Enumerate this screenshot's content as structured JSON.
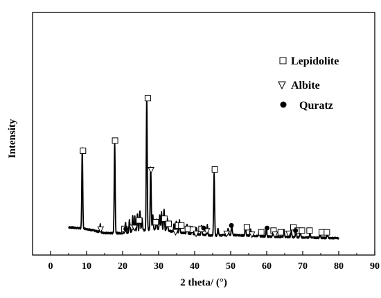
{
  "chart_data": {
    "type": "line",
    "xlabel": "2 theta/ (°)",
    "ylabel": "Intensity",
    "xlim": [
      -5,
      90
    ],
    "ylim": [
      0,
      100
    ],
    "x_ticks": [
      0,
      10,
      20,
      30,
      40,
      50,
      60,
      70,
      80,
      90
    ],
    "grid": false,
    "legend_position": "top-right",
    "legend": [
      {
        "label": "Lepidolite",
        "marker": "open-square"
      },
      {
        "label": "Albite",
        "marker": "open-down-triangle"
      },
      {
        "label": "Quratz",
        "marker": "filled-circle"
      }
    ],
    "series": [
      {
        "x_range": [
          5,
          80
        ],
        "baseline": [
          [
            5,
            7
          ],
          [
            10,
            6
          ],
          [
            15,
            3.5
          ],
          [
            20,
            3.5
          ],
          [
            25,
            5
          ],
          [
            30,
            6
          ],
          [
            35,
            4
          ],
          [
            40,
            3
          ],
          [
            45,
            2
          ],
          [
            50,
            2.5
          ],
          [
            60,
            1.5
          ],
          [
            70,
            1
          ],
          [
            80,
            0.5
          ]
        ],
        "peaks": [
          {
            "x": 8.8,
            "y": 47
          },
          {
            "x": 13.8,
            "y": 4.5
          },
          {
            "x": 17.8,
            "y": 53
          },
          {
            "x": 20.8,
            "y": 6
          },
          {
            "x": 21.9,
            "y": 7
          },
          {
            "x": 22.8,
            "y": 9
          },
          {
            "x": 23.4,
            "y": 9
          },
          {
            "x": 24.1,
            "y": 10
          },
          {
            "x": 24.8,
            "y": 12
          },
          {
            "x": 25.4,
            "y": 7
          },
          {
            "x": 26.7,
            "y": 78
          },
          {
            "x": 27.8,
            "y": 37
          },
          {
            "x": 28.4,
            "y": 8
          },
          {
            "x": 29.4,
            "y": 6
          },
          {
            "x": 30.3,
            "y": 8
          },
          {
            "x": 30.8,
            "y": 10
          },
          {
            "x": 31.5,
            "y": 12
          },
          {
            "x": 32.4,
            "y": 7
          },
          {
            "x": 34.3,
            "y": 5
          },
          {
            "x": 34.9,
            "y": 6
          },
          {
            "x": 35.8,
            "y": 7
          },
          {
            "x": 37.9,
            "y": 5
          },
          {
            "x": 39.3,
            "y": 4
          },
          {
            "x": 40.5,
            "y": 4
          },
          {
            "x": 41.9,
            "y": 5
          },
          {
            "x": 43.5,
            "y": 6
          },
          {
            "x": 45.4,
            "y": 37
          },
          {
            "x": 46.5,
            "y": 4
          },
          {
            "x": 49.3,
            "y": 4
          },
          {
            "x": 50.3,
            "y": 6
          },
          {
            "x": 54.1,
            "y": 5
          },
          {
            "x": 55.5,
            "y": 4
          },
          {
            "x": 57.9,
            "y": 4
          },
          {
            "x": 59.9,
            "y": 5
          },
          {
            "x": 61.8,
            "y": 3
          },
          {
            "x": 64.8,
            "y": 4
          },
          {
            "x": 66.8,
            "y": 4
          },
          {
            "x": 68.1,
            "y": 5
          },
          {
            "x": 69.3,
            "y": 3
          },
          {
            "x": 72.0,
            "y": 2.5
          },
          {
            "x": 74.8,
            "y": 2.5
          },
          {
            "x": 76.8,
            "y": 2.5
          }
        ]
      }
    ],
    "markers": [
      {
        "phase": "Lepidolite",
        "x": 9.0,
        "y": 52
      },
      {
        "phase": "Lepidolite",
        "x": 17.9,
        "y": 58
      },
      {
        "phase": "Lepidolite",
        "x": 27.0,
        "y": 83
      },
      {
        "phase": "Lepidolite",
        "x": 45.6,
        "y": 41
      },
      {
        "phase": "Lepidolite",
        "x": 24.6,
        "y": 11
      },
      {
        "phase": "Lepidolite",
        "x": 31.6,
        "y": 12
      },
      {
        "phase": "Lepidolite",
        "x": 29.2,
        "y": 10
      },
      {
        "phase": "Lepidolite",
        "x": 32.8,
        "y": 9
      },
      {
        "phase": "Lepidolite",
        "x": 20.5,
        "y": 6
      },
      {
        "phase": "Lepidolite",
        "x": 35.4,
        "y": 8
      },
      {
        "phase": "Lepidolite",
        "x": 36.3,
        "y": 8
      },
      {
        "phase": "Lepidolite",
        "x": 38.1,
        "y": 6
      },
      {
        "phase": "Lepidolite",
        "x": 39.5,
        "y": 5.5
      },
      {
        "phase": "Lepidolite",
        "x": 41.9,
        "y": 6
      },
      {
        "phase": "Lepidolite",
        "x": 54.5,
        "y": 7
      },
      {
        "phase": "Lepidolite",
        "x": 58.5,
        "y": 4
      },
      {
        "phase": "Lepidolite",
        "x": 61.9,
        "y": 5
      },
      {
        "phase": "Lepidolite",
        "x": 63.9,
        "y": 4
      },
      {
        "phase": "Lepidolite",
        "x": 67.4,
        "y": 7
      },
      {
        "phase": "Lepidolite",
        "x": 68.6,
        "y": 5
      },
      {
        "phase": "Lepidolite",
        "x": 69.8,
        "y": 5
      },
      {
        "phase": "Lepidolite",
        "x": 71.9,
        "y": 5
      },
      {
        "phase": "Lepidolite",
        "x": 75.3,
        "y": 4
      },
      {
        "phase": "Lepidolite",
        "x": 76.7,
        "y": 4
      },
      {
        "phase": "Albite",
        "x": 13.9,
        "y": 6
      },
      {
        "phase": "Albite",
        "x": 22.6,
        "y": 7
      },
      {
        "phase": "Albite",
        "x": 23.3,
        "y": 7
      },
      {
        "phase": "Albite",
        "x": 27.9,
        "y": 41
      },
      {
        "phase": "Albite",
        "x": 34.7,
        "y": 4.5
      },
      {
        "phase": "Albite",
        "x": 40.4,
        "y": 3.5
      },
      {
        "phase": "Albite",
        "x": 43.4,
        "y": 5
      },
      {
        "phase": "Albite",
        "x": 48.9,
        "y": 3.5
      },
      {
        "phase": "Albite",
        "x": 55.9,
        "y": 3
      },
      {
        "phase": "Albite",
        "x": 62.3,
        "y": 3
      },
      {
        "phase": "Albite",
        "x": 66.1,
        "y": 3.5
      },
      {
        "phase": "Quratz",
        "x": 20.9,
        "y": 6
      },
      {
        "phase": "Quratz",
        "x": 42.5,
        "y": 6.5
      },
      {
        "phase": "Quratz",
        "x": 50.2,
        "y": 8
      },
      {
        "phase": "Quratz",
        "x": 60.1,
        "y": 6.5
      },
      {
        "phase": "Quratz",
        "x": 68.0,
        "y": 5
      }
    ]
  }
}
